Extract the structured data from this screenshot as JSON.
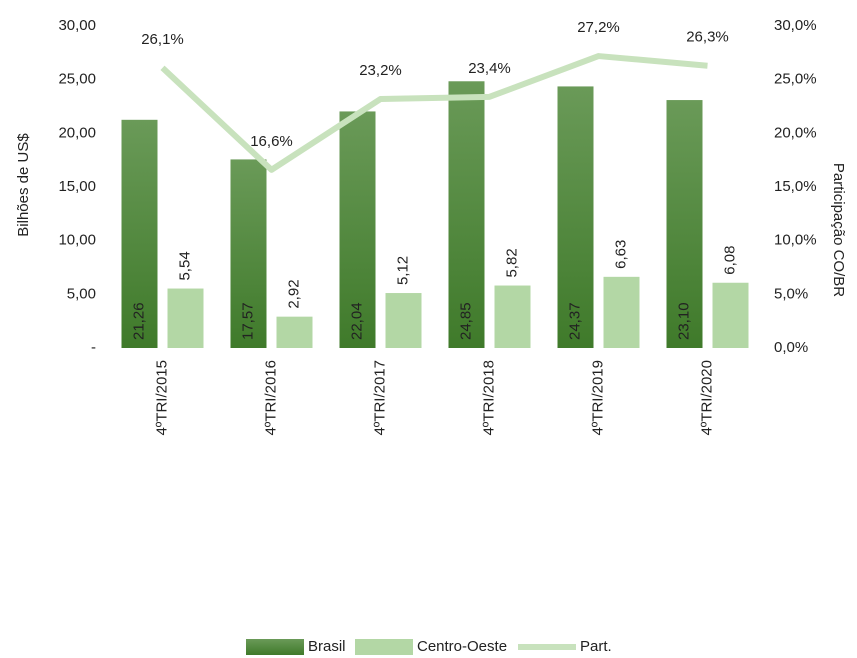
{
  "chart_data": {
    "type": "bar",
    "categories": [
      "4ºTRI/2015",
      "4ºTRI/2016",
      "4ºTRI/2017",
      "4ºTRI/2018",
      "4ºTRI/2019",
      "4ºTRI/2020"
    ],
    "series": [
      {
        "name": "Brasil",
        "type": "bar",
        "color": "#4f8a3a",
        "values": [
          21.26,
          17.57,
          22.04,
          24.85,
          24.37,
          23.1
        ],
        "value_labels": [
          "21,26",
          "17,57",
          "22,04",
          "24,85",
          "24,37",
          "23,10"
        ]
      },
      {
        "name": "Centro-Oeste",
        "type": "bar",
        "color": "#b3d7a5",
        "values": [
          5.54,
          2.92,
          5.12,
          5.82,
          6.63,
          6.08
        ],
        "value_labels": [
          "5,54",
          "2,92",
          "5,12",
          "5,82",
          "6,63",
          "6,08"
        ]
      },
      {
        "name": "Part.",
        "type": "line",
        "axis": "y2",
        "color": "#c8e2bd",
        "values": [
          26.1,
          16.6,
          23.2,
          23.4,
          27.2,
          26.3
        ],
        "value_labels": [
          "26,1%",
          "16,6%",
          "23,2%",
          "23,4%",
          "27,2%",
          "26,3%"
        ]
      }
    ],
    "ylabel": "Bilhões de US$",
    "y2label": "Participação CO/BR",
    "ylim": [
      0,
      30
    ],
    "yticks": [
      {
        "value": 0,
        "label": "-"
      },
      {
        "value": 5,
        "label": "5,00"
      },
      {
        "value": 10,
        "label": "10,00"
      },
      {
        "value": 15,
        "label": "15,00"
      },
      {
        "value": 20,
        "label": "20,00"
      },
      {
        "value": 25,
        "label": "25,00"
      },
      {
        "value": 30,
        "label": "30,00"
      }
    ],
    "y2lim": [
      0,
      30
    ],
    "y2ticks": [
      {
        "value": 0,
        "label": "0,0%"
      },
      {
        "value": 5,
        "label": "5,0%"
      },
      {
        "value": 10,
        "label": "10,0%"
      },
      {
        "value": 15,
        "label": "15,0%"
      },
      {
        "value": 20,
        "label": "20,0%"
      },
      {
        "value": 25,
        "label": "25,0%"
      },
      {
        "value": 30,
        "label": "30,0%"
      }
    ],
    "legend": "bottom"
  }
}
